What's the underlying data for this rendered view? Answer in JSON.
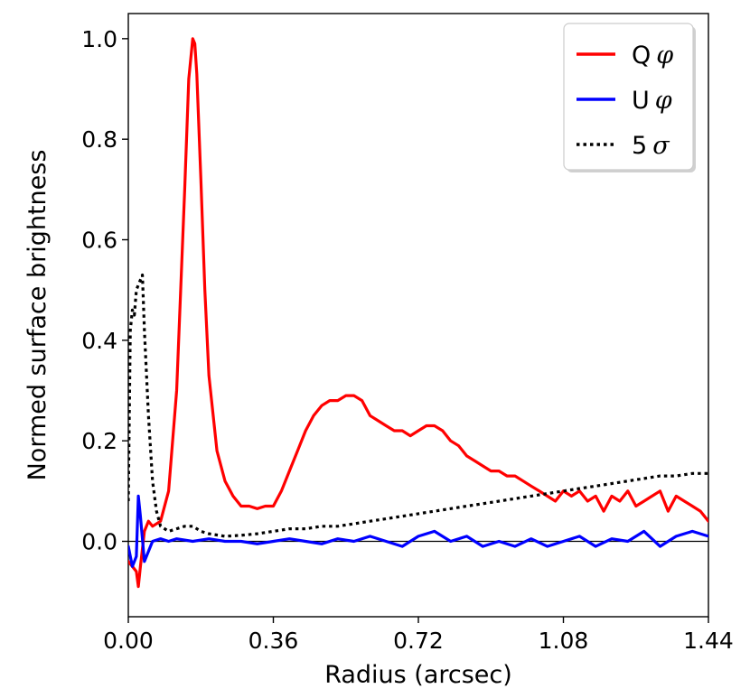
{
  "chart_data": {
    "type": "line",
    "title": "",
    "xlabel": "Radius (arcsec)",
    "ylabel": "Normed surface brightness",
    "xlim": [
      0.0,
      1.44
    ],
    "ylim": [
      -0.15,
      1.05
    ],
    "xticks": [
      0.0,
      0.36,
      0.72,
      1.08,
      1.44
    ],
    "xtick_labels": [
      "0.00",
      "0.36",
      "0.72",
      "1.08",
      "1.44"
    ],
    "yticks": [
      0.0,
      0.2,
      0.4,
      0.6,
      0.8,
      1.0
    ],
    "ytick_labels": [
      "0.0",
      "0.2",
      "0.4",
      "0.6",
      "0.8",
      "1.0"
    ],
    "grid": false,
    "legend": {
      "position": "top-right"
    },
    "reference_line_y": 0.0,
    "series": [
      {
        "name": "Q",
        "symbol": "φ",
        "color": "#ff0000",
        "style": "solid",
        "x": [
          0.0,
          0.01,
          0.02,
          0.025,
          0.03,
          0.04,
          0.05,
          0.06,
          0.08,
          0.1,
          0.12,
          0.14,
          0.15,
          0.16,
          0.165,
          0.17,
          0.18,
          0.19,
          0.2,
          0.22,
          0.24,
          0.26,
          0.28,
          0.3,
          0.32,
          0.34,
          0.36,
          0.38,
          0.4,
          0.42,
          0.44,
          0.46,
          0.48,
          0.5,
          0.52,
          0.54,
          0.56,
          0.58,
          0.6,
          0.62,
          0.64,
          0.66,
          0.68,
          0.7,
          0.72,
          0.74,
          0.76,
          0.78,
          0.8,
          0.82,
          0.84,
          0.86,
          0.88,
          0.9,
          0.92,
          0.94,
          0.96,
          0.98,
          1.0,
          1.02,
          1.04,
          1.06,
          1.08,
          1.1,
          1.12,
          1.14,
          1.16,
          1.18,
          1.2,
          1.22,
          1.24,
          1.26,
          1.28,
          1.3,
          1.32,
          1.34,
          1.36,
          1.38,
          1.4,
          1.42,
          1.44
        ],
        "values": [
          -0.04,
          -0.05,
          -0.06,
          -0.09,
          -0.05,
          0.02,
          0.04,
          0.03,
          0.04,
          0.1,
          0.3,
          0.7,
          0.92,
          1.0,
          0.99,
          0.93,
          0.72,
          0.5,
          0.33,
          0.18,
          0.12,
          0.09,
          0.07,
          0.07,
          0.065,
          0.07,
          0.07,
          0.1,
          0.14,
          0.18,
          0.22,
          0.25,
          0.27,
          0.28,
          0.28,
          0.29,
          0.29,
          0.28,
          0.25,
          0.24,
          0.23,
          0.22,
          0.22,
          0.21,
          0.22,
          0.23,
          0.23,
          0.22,
          0.2,
          0.19,
          0.17,
          0.16,
          0.15,
          0.14,
          0.14,
          0.13,
          0.13,
          0.12,
          0.11,
          0.1,
          0.09,
          0.08,
          0.1,
          0.09,
          0.1,
          0.08,
          0.09,
          0.06,
          0.09,
          0.08,
          0.1,
          0.07,
          0.08,
          0.09,
          0.1,
          0.06,
          0.09,
          0.08,
          0.07,
          0.06,
          0.04
        ]
      },
      {
        "name": "U",
        "symbol": "φ",
        "color": "#0000ff",
        "style": "solid",
        "x": [
          0.0,
          0.01,
          0.02,
          0.025,
          0.03,
          0.04,
          0.05,
          0.06,
          0.08,
          0.1,
          0.12,
          0.16,
          0.2,
          0.24,
          0.28,
          0.32,
          0.36,
          0.4,
          0.44,
          0.48,
          0.52,
          0.56,
          0.6,
          0.64,
          0.68,
          0.72,
          0.76,
          0.8,
          0.84,
          0.88,
          0.92,
          0.96,
          1.0,
          1.04,
          1.08,
          1.12,
          1.16,
          1.2,
          1.24,
          1.28,
          1.32,
          1.36,
          1.4,
          1.44
        ],
        "values": [
          -0.01,
          -0.05,
          -0.03,
          0.09,
          0.05,
          -0.04,
          -0.02,
          0.0,
          0.005,
          0.0,
          0.005,
          0.0,
          0.005,
          0.0,
          0.0,
          -0.005,
          0.0,
          0.005,
          0.0,
          -0.005,
          0.005,
          0.0,
          0.01,
          0.0,
          -0.01,
          0.01,
          0.02,
          0.0,
          0.01,
          -0.01,
          0.0,
          -0.01,
          0.005,
          -0.01,
          0.0,
          0.01,
          -0.01,
          0.005,
          0.0,
          0.02,
          -0.01,
          0.01,
          0.02,
          0.01
        ]
      },
      {
        "name": "5",
        "symbol": "σ",
        "color": "#000000",
        "style": "dotted",
        "x": [
          0.0,
          0.005,
          0.01,
          0.015,
          0.02,
          0.025,
          0.03,
          0.035,
          0.04,
          0.05,
          0.06,
          0.07,
          0.08,
          0.1,
          0.12,
          0.14,
          0.16,
          0.18,
          0.2,
          0.24,
          0.28,
          0.32,
          0.36,
          0.4,
          0.44,
          0.48,
          0.52,
          0.56,
          0.6,
          0.64,
          0.68,
          0.72,
          0.76,
          0.8,
          0.84,
          0.88,
          0.92,
          0.96,
          1.0,
          1.04,
          1.08,
          1.12,
          1.16,
          1.2,
          1.24,
          1.28,
          1.32,
          1.36,
          1.4,
          1.44
        ],
        "values": [
          0.08,
          0.42,
          0.46,
          0.45,
          0.5,
          0.51,
          0.52,
          0.53,
          0.42,
          0.25,
          0.12,
          0.06,
          0.03,
          0.02,
          0.025,
          0.03,
          0.03,
          0.02,
          0.015,
          0.01,
          0.012,
          0.015,
          0.02,
          0.025,
          0.025,
          0.03,
          0.03,
          0.035,
          0.04,
          0.045,
          0.05,
          0.055,
          0.06,
          0.065,
          0.07,
          0.075,
          0.08,
          0.085,
          0.09,
          0.095,
          0.1,
          0.105,
          0.11,
          0.115,
          0.12,
          0.125,
          0.13,
          0.13,
          0.135,
          0.135
        ]
      }
    ]
  }
}
